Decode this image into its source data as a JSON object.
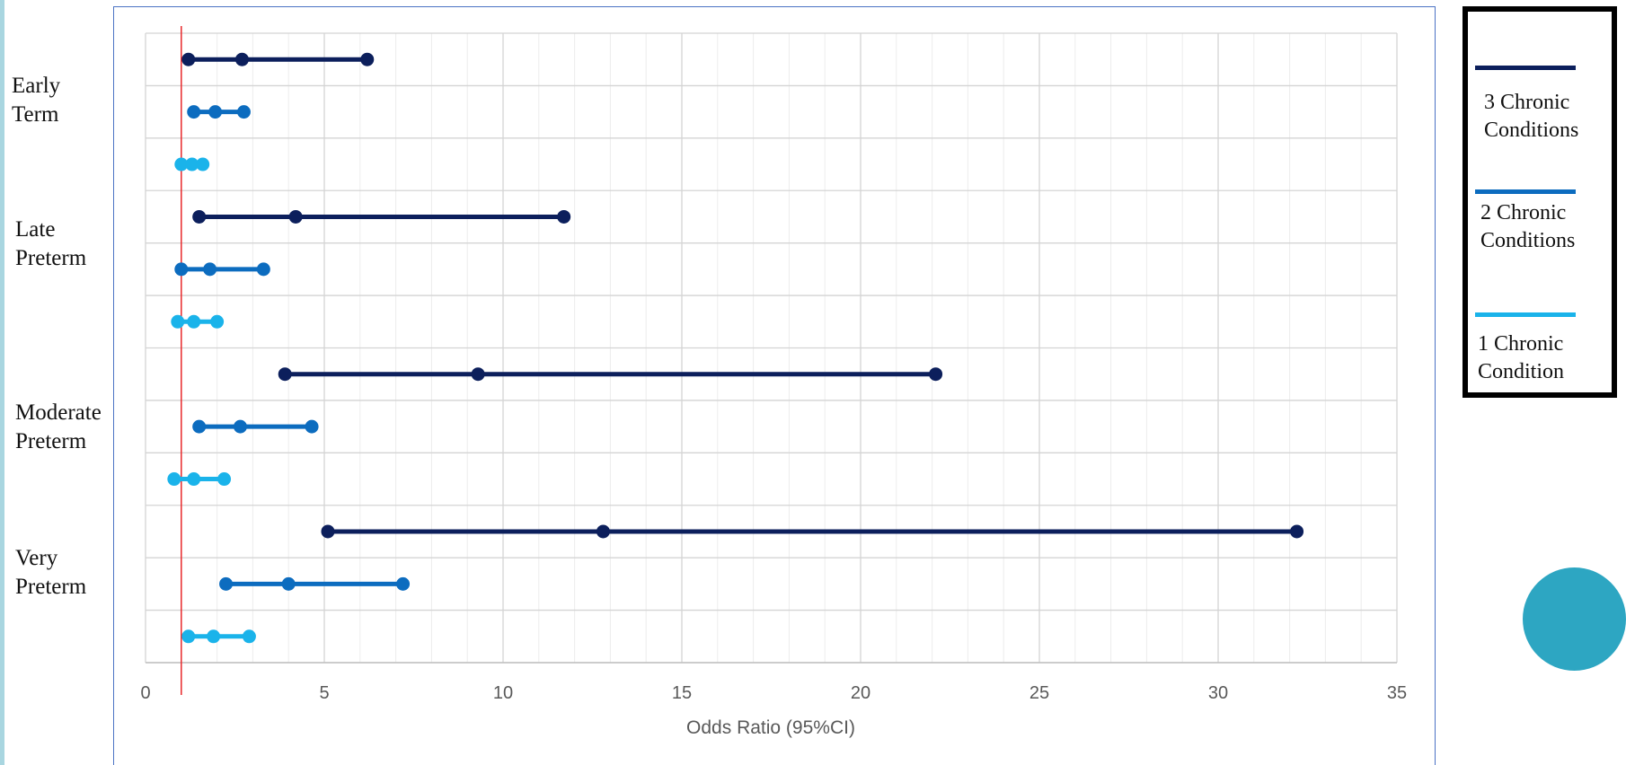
{
  "chart_data": {
    "type": "forest",
    "title": "",
    "xlabel": "Odds Ratio (95%CI)",
    "ylabel": "",
    "xlim": [
      0,
      35
    ],
    "xticks": [
      0,
      5,
      10,
      15,
      20,
      25,
      30,
      35
    ],
    "xtick_labels": [
      "0",
      "5",
      "10",
      "15",
      "20",
      "25",
      "30",
      "35"
    ],
    "reference_line": 1,
    "grid": true,
    "legend_position": "right",
    "categories": [
      "Early\nTerm",
      "Late\nPreterm",
      "Moderate\nPreterm",
      "Very\nPreterm"
    ],
    "series": [
      {
        "name": "3 Chronic\nConditions",
        "color": "#0c1f5c",
        "values": [
          {
            "lower": 1.2,
            "or": 2.7,
            "upper": 6.2
          },
          {
            "lower": 1.5,
            "or": 4.2,
            "upper": 11.7
          },
          {
            "lower": 3.9,
            "or": 9.3,
            "upper": 22.1
          },
          {
            "lower": 5.1,
            "or": 12.8,
            "upper": 32.2
          }
        ]
      },
      {
        "name": "2 Chronic\nConditions",
        "color": "#0c6cbf",
        "values": [
          {
            "lower": 1.35,
            "or": 1.95,
            "upper": 2.75
          },
          {
            "lower": 1.0,
            "or": 1.8,
            "upper": 3.3
          },
          {
            "lower": 1.5,
            "or": 2.65,
            "upper": 4.65
          },
          {
            "lower": 2.25,
            "or": 4.0,
            "upper": 7.2
          }
        ]
      },
      {
        "name": "1 Chronic\nCondition",
        "color": "#1ab3ea",
        "values": [
          {
            "lower": 1.0,
            "or": 1.3,
            "upper": 1.6
          },
          {
            "lower": 0.9,
            "or": 1.35,
            "upper": 2.0
          },
          {
            "lower": 0.8,
            "or": 1.35,
            "upper": 2.2
          },
          {
            "lower": 1.2,
            "or": 1.9,
            "upper": 2.9
          }
        ]
      }
    ]
  },
  "decor": {
    "reference_line_color": "#e8282a",
    "circle_color": "#2da6c2",
    "frame_color": "#4b73c4"
  }
}
